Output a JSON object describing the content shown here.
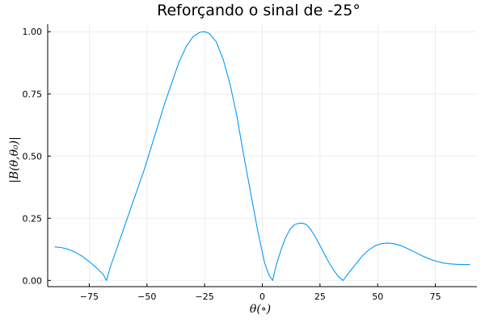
{
  "chart_data": {
    "type": "line",
    "title": "Reforçando o sinal de -25°",
    "xlabel": "θ(∘)",
    "ylabel": "|B(θ,θ₀)|",
    "xlim": [
      -93,
      93
    ],
    "ylim": [
      -0.025,
      1.03
    ],
    "xticks": [
      -75,
      -50,
      -25,
      0,
      25,
      50,
      75
    ],
    "xtick_labels": [
      "−75",
      "−50",
      "−25",
      "0",
      "25",
      "50",
      "75"
    ],
    "yticks": [
      0.0,
      0.25,
      0.5,
      0.75,
      1.0
    ],
    "ytick_labels": [
      "0.00",
      "0.25",
      "0.50",
      "0.75",
      "1.00"
    ],
    "grid": true,
    "legend": "none",
    "series": [
      {
        "color": "#009af9",
        "x": [
          -90,
          -87,
          -84,
          -81,
          -78,
          -75,
          -72,
          -69,
          -67.5,
          -66,
          -63,
          -60,
          -57,
          -54,
          -51,
          -48,
          -45,
          -42,
          -39,
          -36,
          -33,
          -30,
          -27,
          -25,
          -23,
          -20,
          -17,
          -14,
          -11,
          -8,
          -5,
          -2,
          1,
          3,
          4.5,
          6,
          8,
          10,
          12,
          14,
          16,
          17.5,
          19,
          21,
          23,
          25,
          27,
          29,
          31,
          33,
          35,
          37,
          40,
          43,
          46,
          49,
          52,
          54.5,
          57,
          60,
          63,
          66,
          69,
          72,
          75,
          78,
          81,
          84,
          87,
          90
        ],
        "y": [
          0.135,
          0.132,
          0.125,
          0.113,
          0.097,
          0.076,
          0.052,
          0.025,
          0.0,
          0.05,
          0.13,
          0.21,
          0.29,
          0.37,
          0.45,
          0.54,
          0.63,
          0.72,
          0.8,
          0.88,
          0.94,
          0.98,
          0.998,
          1.0,
          0.993,
          0.96,
          0.89,
          0.79,
          0.66,
          0.5,
          0.35,
          0.2,
          0.07,
          0.02,
          0.0,
          0.06,
          0.12,
          0.17,
          0.205,
          0.225,
          0.23,
          0.23,
          0.225,
          0.205,
          0.175,
          0.14,
          0.105,
          0.07,
          0.04,
          0.015,
          0.0,
          0.025,
          0.06,
          0.095,
          0.122,
          0.14,
          0.149,
          0.15,
          0.148,
          0.14,
          0.128,
          0.114,
          0.1,
          0.088,
          0.078,
          0.071,
          0.067,
          0.065,
          0.064,
          0.064
        ]
      }
    ]
  }
}
